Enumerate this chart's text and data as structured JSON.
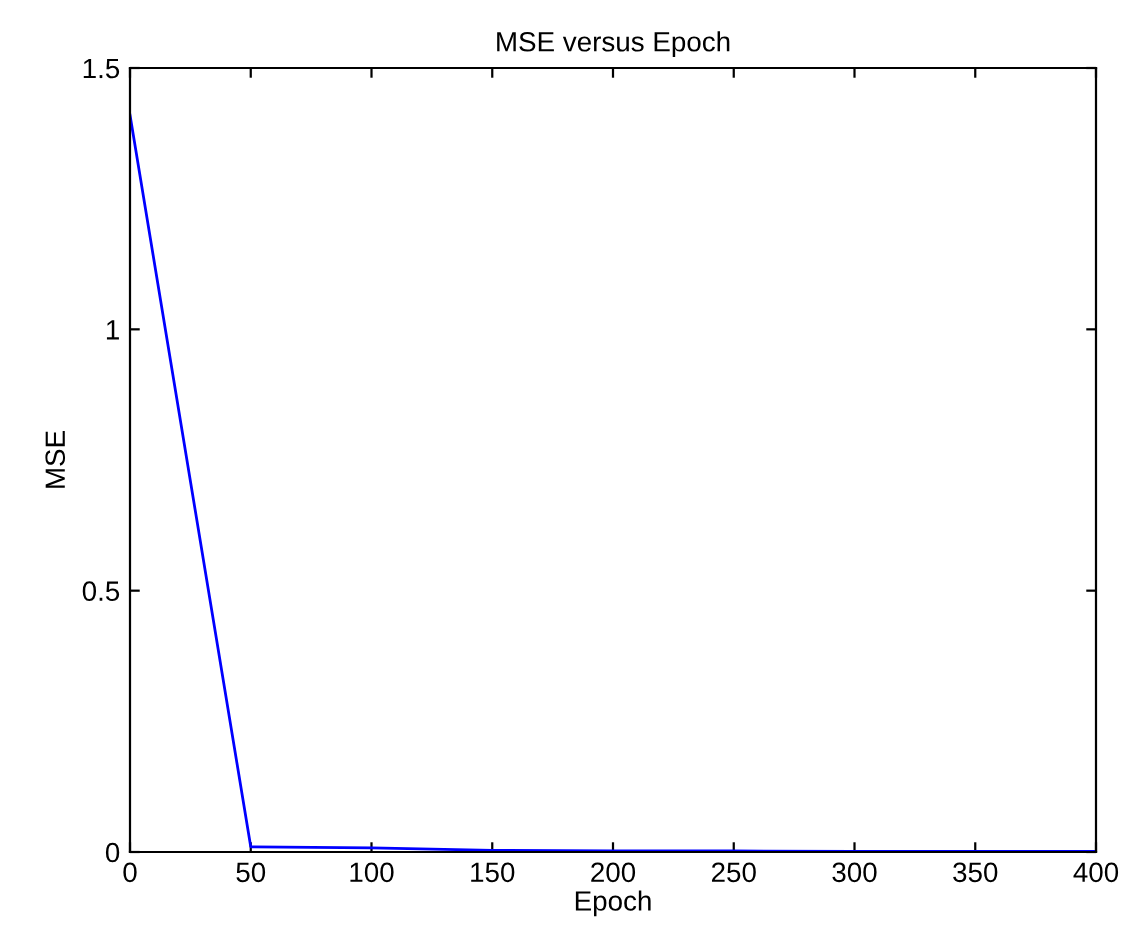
{
  "chart_data": {
    "type": "line",
    "title": "MSE versus Epoch",
    "xlabel": "Epoch",
    "ylabel": "MSE",
    "x": [
      0,
      50,
      100,
      150,
      200,
      250,
      300,
      350,
      400
    ],
    "series": [
      {
        "color": "#0000ff",
        "values": [
          1.41,
          0.01,
          0.008,
          0.003,
          0.002,
          0.002,
          0.001,
          0.001,
          0.001
        ]
      }
    ],
    "xlim": [
      0,
      400
    ],
    "ylim": [
      0,
      1.5
    ],
    "xticks": [
      0,
      50,
      100,
      150,
      200,
      250,
      300,
      350,
      400
    ],
    "yticks": [
      0,
      0.5,
      1,
      1.5
    ],
    "grid": false,
    "legend": false
  }
}
